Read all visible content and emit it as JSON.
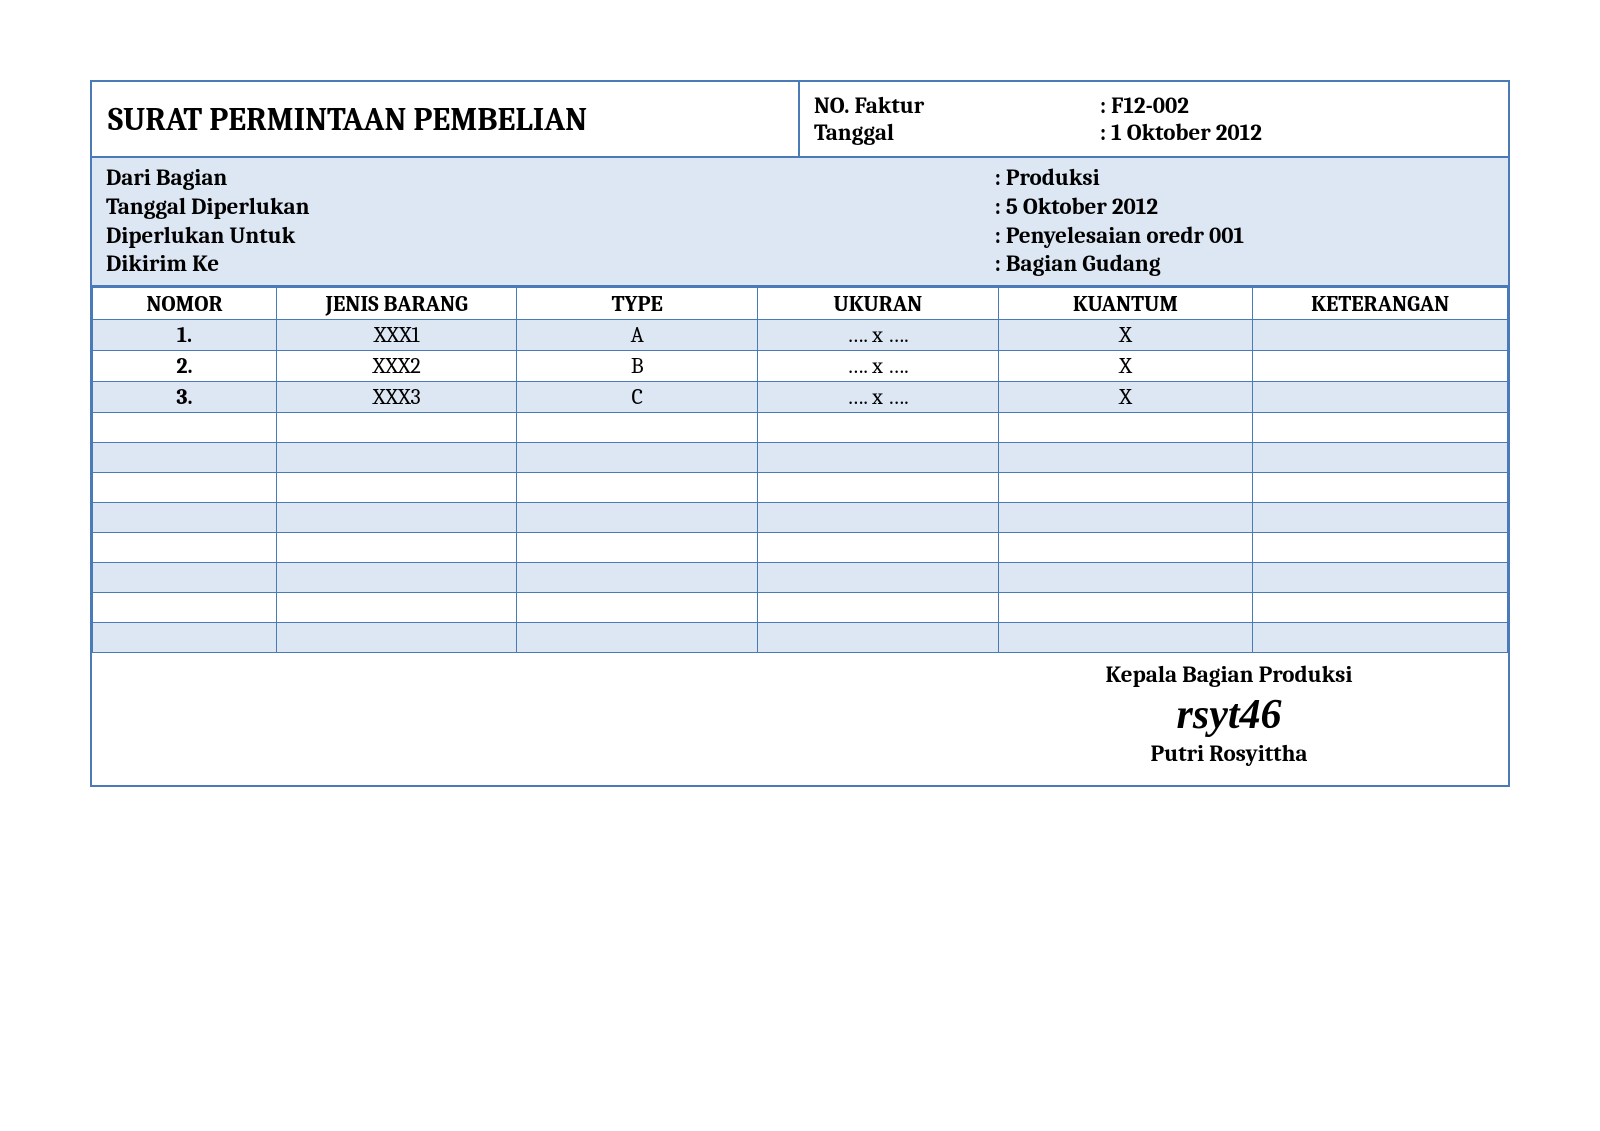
{
  "colors": {
    "border": "#4a7ab8",
    "shade": "#dde7f3",
    "background": "#ffffff",
    "text": "#000000"
  },
  "typography": {
    "title_fontsize": 32,
    "body_fontsize": 23,
    "cell_fontsize": 22,
    "script_fontsize": 42,
    "font_family": "Cambria, Georgia, serif",
    "script_family": "Brush Script MT, cursive"
  },
  "header": {
    "title": "SURAT PERMINTAAN PEMBELIAN",
    "meta": [
      {
        "label": "NO. Faktur",
        "value": ": F12-002"
      },
      {
        "label": "Tanggal",
        "value": ": 1 Oktober 2012"
      }
    ]
  },
  "info": [
    {
      "label": "Dari Bagian",
      "value": ":  Produksi"
    },
    {
      "label": "Tanggal Diperlukan",
      "value": ":  5 Oktober 2012"
    },
    {
      "label": "Diperlukan Untuk",
      "value": ":  Penyelesaian oredr 001"
    },
    {
      "label": "Dikirim Ke",
      "value": ":  Bagian Gudang"
    }
  ],
  "table": {
    "columns": [
      "NOMOR",
      "JENIS BARANG",
      "TYPE",
      "UKURAN",
      "KUANTUM",
      "KETERANGAN"
    ],
    "col_widths_pct": [
      13,
      17,
      17,
      17,
      18,
      18
    ],
    "rows": [
      {
        "cells": [
          "1.",
          "XXX1",
          "A",
          "…. x ….",
          "X",
          ""
        ],
        "shaded": true
      },
      {
        "cells": [
          "2.",
          "XXX2",
          "B",
          "…. x ….",
          "X",
          ""
        ],
        "shaded": false
      },
      {
        "cells": [
          "3.",
          "XXX3",
          "C",
          "…. x ….",
          "X",
          ""
        ],
        "shaded": true
      },
      {
        "cells": [
          "",
          "",
          "",
          "",
          "",
          ""
        ],
        "shaded": false
      },
      {
        "cells": [
          "",
          "",
          "",
          "",
          "",
          ""
        ],
        "shaded": true
      },
      {
        "cells": [
          "",
          "",
          "",
          "",
          "",
          ""
        ],
        "shaded": false
      },
      {
        "cells": [
          "",
          "",
          "",
          "",
          "",
          ""
        ],
        "shaded": true
      },
      {
        "cells": [
          "",
          "",
          "",
          "",
          "",
          ""
        ],
        "shaded": false
      },
      {
        "cells": [
          "",
          "",
          "",
          "",
          "",
          ""
        ],
        "shaded": true
      },
      {
        "cells": [
          "",
          "",
          "",
          "",
          "",
          ""
        ],
        "shaded": false
      },
      {
        "cells": [
          "",
          "",
          "",
          "",
          "",
          ""
        ],
        "shaded": true
      }
    ]
  },
  "signature": {
    "role": "Kepala Bagian Produksi",
    "script": "rsyt46",
    "name": "Putri Rosyittha"
  }
}
